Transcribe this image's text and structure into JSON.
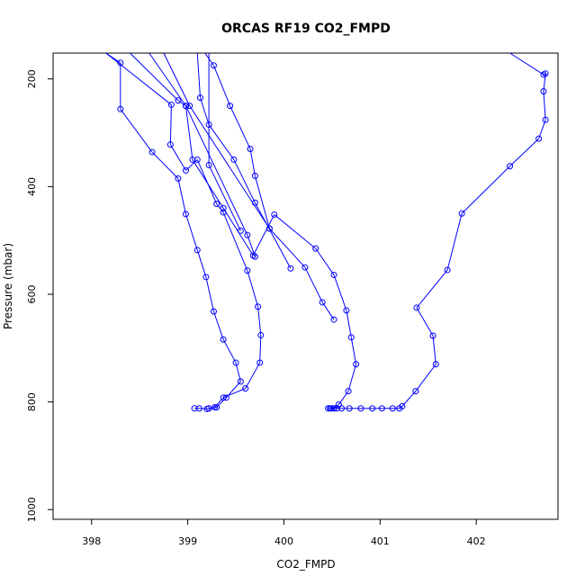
{
  "chart_data": {
    "type": "line",
    "title": "ORCAS RF19 CO2_FMPD",
    "xlabel": "CO2_FMPD",
    "ylabel": "Pressure (mbar)",
    "xlim": [
      397.6,
      402.85
    ],
    "ylim": [
      1018,
      152
    ],
    "y_inverted": true,
    "grid": false,
    "legend": "none",
    "xticks": [
      398,
      399,
      400,
      401,
      402
    ],
    "yticks": [
      200,
      400,
      600,
      800,
      1000
    ],
    "color": "#0000ff",
    "marker": "open-circle",
    "series": [
      {
        "points": [
          [
            398.15,
            152
          ],
          [
            398.3,
            170
          ],
          [
            398.3,
            256
          ],
          [
            398.63,
            336
          ],
          [
            398.9,
            385
          ],
          [
            398.98,
            451
          ],
          [
            399.1,
            518
          ],
          [
            399.19,
            568
          ],
          [
            399.27,
            632
          ],
          [
            399.37,
            684
          ],
          [
            399.5,
            727
          ],
          [
            399.55,
            762
          ],
          [
            399.4,
            792
          ],
          [
            399.3,
            810
          ],
          [
            399.2,
            813
          ],
          [
            399.12,
            812
          ],
          [
            399.07,
            812
          ]
        ]
      },
      {
        "points": [
          [
            398.15,
            152
          ],
          [
            398.83,
            248
          ],
          [
            398.82,
            322
          ],
          [
            398.98,
            370
          ],
          [
            399.1,
            350
          ],
          [
            399.3,
            432
          ],
          [
            399.37,
            448
          ],
          [
            399.62,
            556
          ],
          [
            399.73,
            623
          ],
          [
            399.76,
            676
          ],
          [
            399.75,
            727
          ],
          [
            399.6,
            775
          ],
          [
            399.37,
            792
          ],
          [
            399.28,
            810
          ],
          [
            399.22,
            812
          ]
        ]
      },
      {
        "points": [
          [
            398.4,
            152
          ],
          [
            398.9,
            240
          ],
          [
            398.98,
            250
          ],
          [
            399.05,
            350
          ],
          [
            399.37,
            440
          ],
          [
            399.68,
            528
          ],
          [
            399.9,
            452
          ],
          [
            400.33,
            515
          ],
          [
            400.52,
            564
          ],
          [
            400.65,
            630
          ],
          [
            400.7,
            680
          ],
          [
            400.75,
            730
          ],
          [
            400.67,
            780
          ],
          [
            400.57,
            805
          ],
          [
            400.52,
            812
          ],
          [
            400.48,
            812
          ]
        ]
      },
      {
        "points": [
          [
            398.6,
            152
          ],
          [
            398.98,
            250
          ],
          [
            399.62,
            490
          ],
          [
            399.7,
            530
          ]
        ]
      },
      {
        "points": [
          [
            398.75,
            152
          ],
          [
            399.02,
            250
          ],
          [
            399.85,
            478
          ],
          [
            400.22,
            550
          ],
          [
            400.4,
            615
          ],
          [
            400.52,
            647
          ]
        ]
      },
      {
        "points": [
          [
            399.1,
            152
          ],
          [
            399.13,
            235
          ],
          [
            399.22,
            285
          ],
          [
            399.48,
            350
          ],
          [
            399.7,
            430
          ],
          [
            400.07,
            552
          ]
        ]
      },
      {
        "points": [
          [
            399.18,
            152
          ],
          [
            399.27,
            175
          ],
          [
            399.44,
            250
          ],
          [
            399.65,
            330
          ],
          [
            399.7,
            380
          ],
          [
            399.85,
            478
          ]
        ]
      },
      {
        "points": [
          [
            399.22,
            152
          ],
          [
            399.22,
            360
          ],
          [
            399.55,
            482
          ]
        ]
      },
      {
        "points": [
          [
            402.35,
            152
          ],
          [
            402.7,
            192
          ],
          [
            402.72,
            190
          ],
          [
            402.7,
            223
          ],
          [
            402.72,
            276
          ],
          [
            402.65,
            311
          ],
          [
            402.35,
            362
          ],
          [
            401.85,
            450
          ],
          [
            401.7,
            555
          ],
          [
            401.38,
            625
          ],
          [
            401.55,
            677
          ],
          [
            401.58,
            730
          ],
          [
            401.37,
            780
          ],
          [
            401.23,
            808
          ],
          [
            401.2,
            812
          ],
          [
            401.13,
            812
          ],
          [
            401.02,
            812
          ],
          [
            400.92,
            812
          ],
          [
            400.8,
            812
          ],
          [
            400.68,
            812
          ],
          [
            400.6,
            812
          ],
          [
            400.55,
            812
          ],
          [
            400.52,
            812
          ],
          [
            400.49,
            812
          ],
          [
            400.46,
            812
          ]
        ]
      }
    ]
  }
}
